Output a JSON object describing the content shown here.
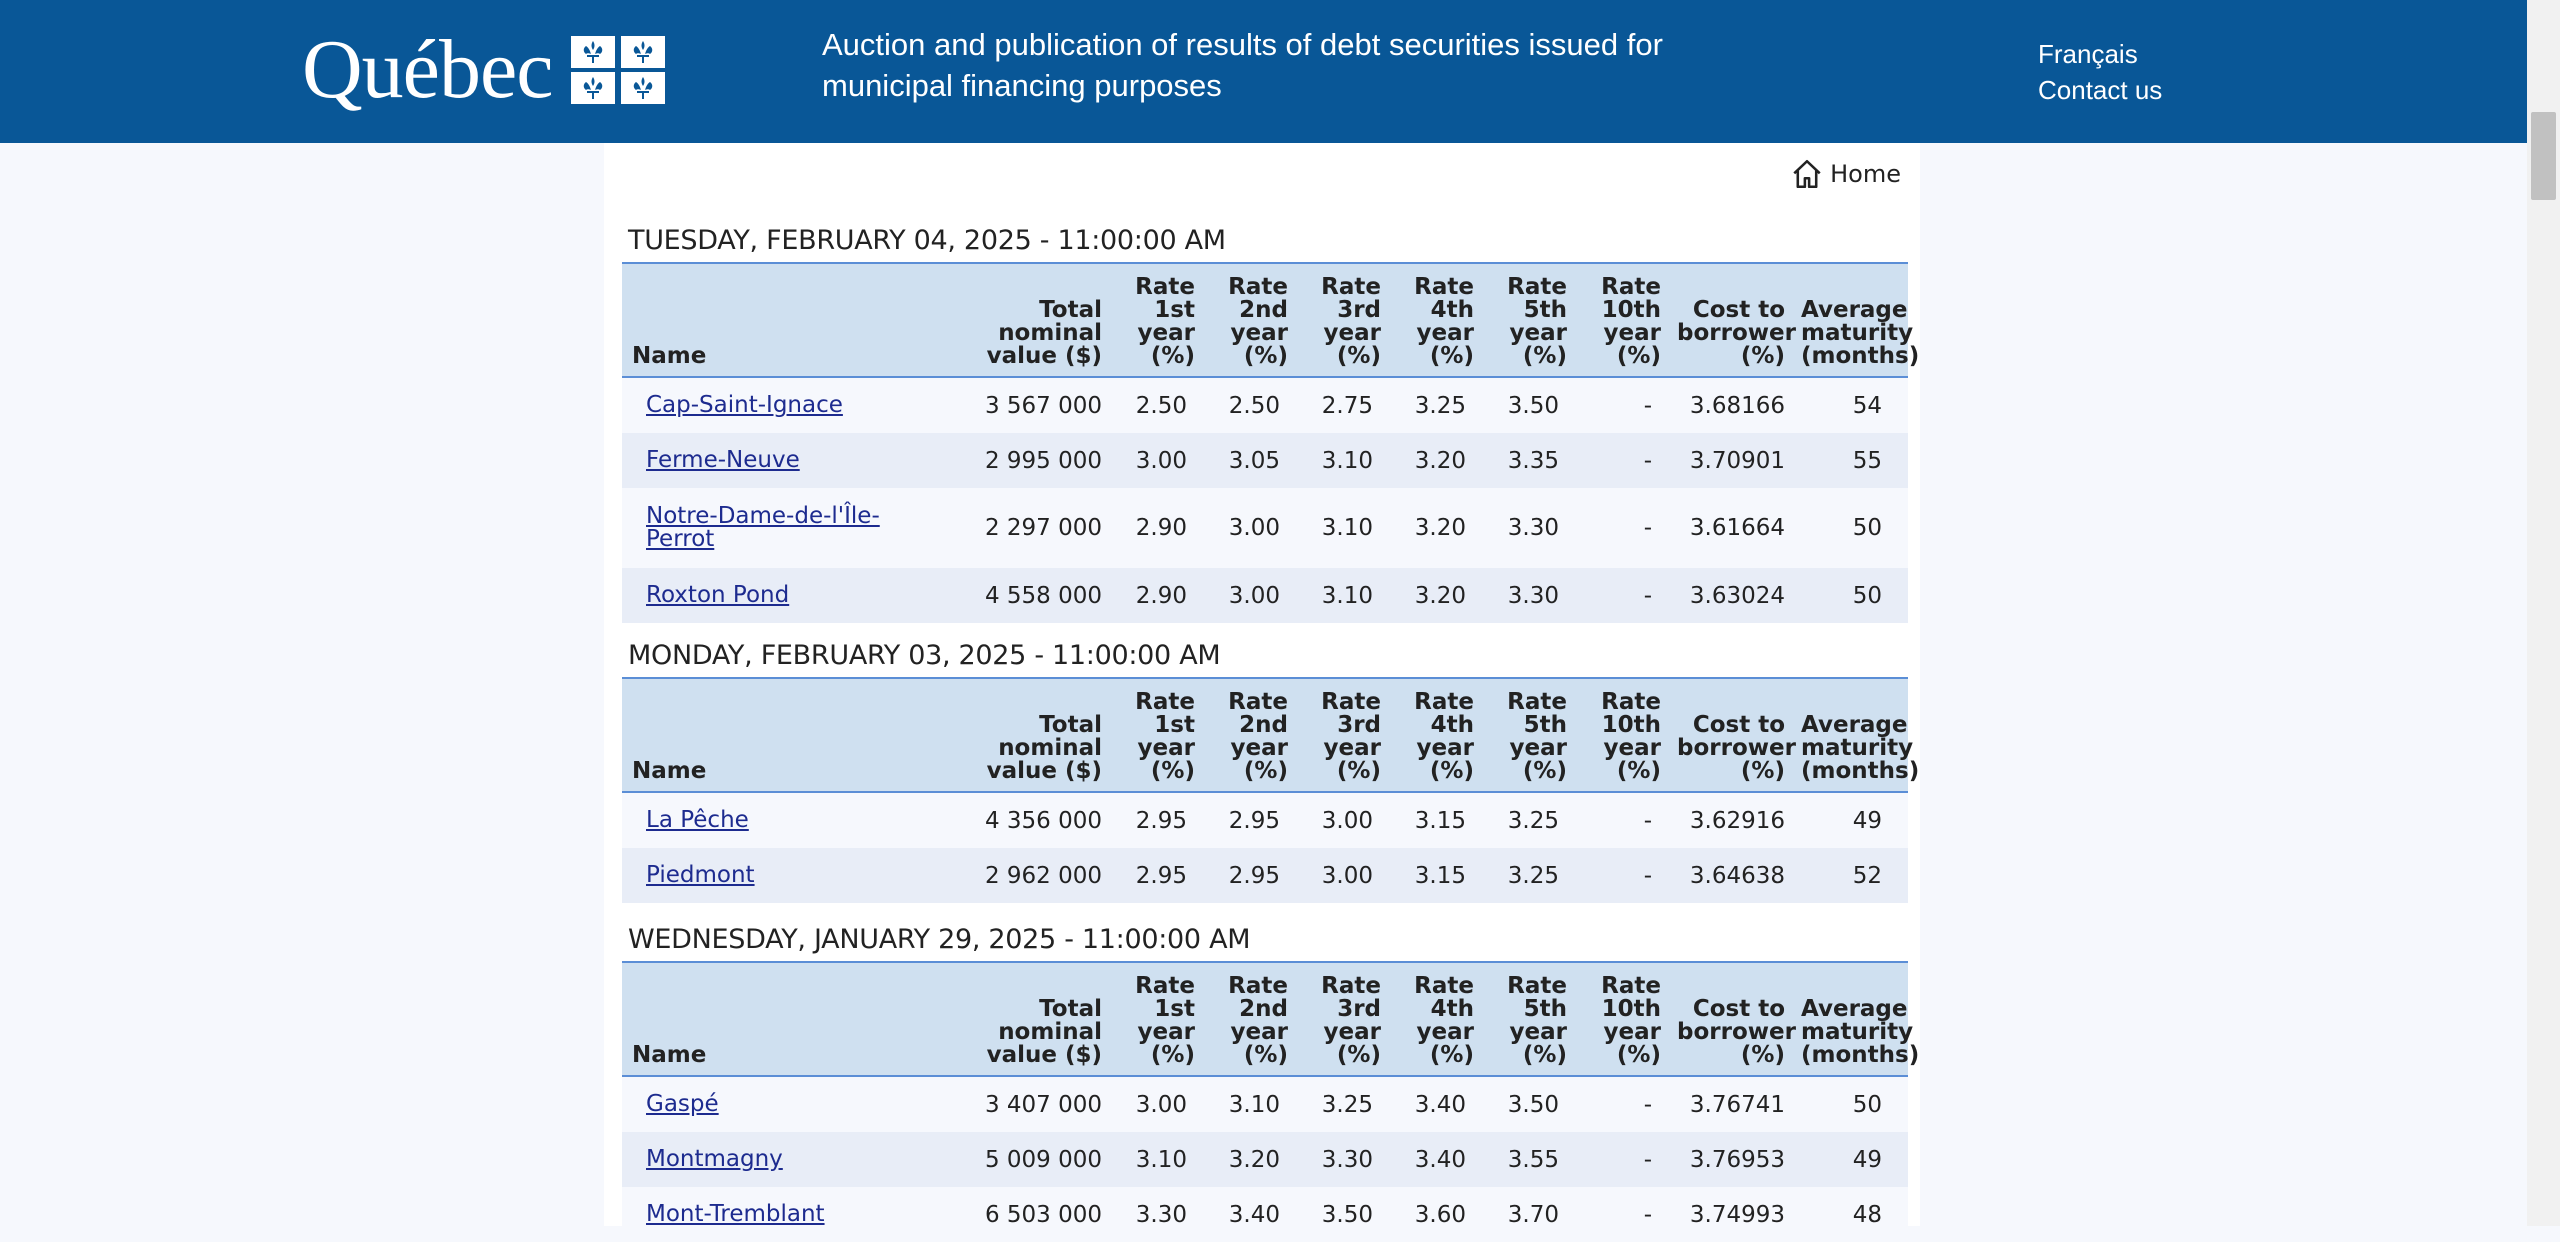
{
  "header": {
    "logo_text": "Québec",
    "title": "Auction and publication of results of debt securities issued for municipal financing purposes",
    "links": [
      "Français",
      "Contact us"
    ],
    "brand_color": "#095797"
  },
  "nav": {
    "home_label": "Home",
    "home_icon": "home-icon"
  },
  "columns": [
    "Name",
    "Total nominal value ($)",
    "Rate 1st year (%)",
    "Rate 2nd year (%)",
    "Rate 3rd year (%)",
    "Rate 4th year (%)",
    "Rate 5th year (%)",
    "Rate 10th year (%)",
    "Cost to borrower (%)",
    "Average maturity (months)"
  ],
  "auctions": [
    {
      "date": "TUESDAY, FEBRUARY 04, 2025 - 11:00:00 AM",
      "rows": [
        {
          "name": "Cap-Saint-Ignace",
          "total": "3 567 000",
          "r1": "2.50",
          "r2": "2.50",
          "r3": "2.75",
          "r4": "3.25",
          "r5": "3.50",
          "r10": "-",
          "cost": "3.68166",
          "maturity": "54"
        },
        {
          "name": "Ferme-Neuve",
          "total": "2 995 000",
          "r1": "3.00",
          "r2": "3.05",
          "r3": "3.10",
          "r4": "3.20",
          "r5": "3.35",
          "r10": "-",
          "cost": "3.70901",
          "maturity": "55"
        },
        {
          "name": "Notre-Dame-de-l'Île-Perrot",
          "total": "2 297 000",
          "r1": "2.90",
          "r2": "3.00",
          "r3": "3.10",
          "r4": "3.20",
          "r5": "3.30",
          "r10": "-",
          "cost": "3.61664",
          "maturity": "50"
        },
        {
          "name": "Roxton Pond",
          "total": "4 558 000",
          "r1": "2.90",
          "r2": "3.00",
          "r3": "3.10",
          "r4": "3.20",
          "r5": "3.30",
          "r10": "-",
          "cost": "3.63024",
          "maturity": "50"
        }
      ]
    },
    {
      "date": "MONDAY, FEBRUARY 03, 2025 - 11:00:00 AM",
      "rows": [
        {
          "name": "La Pêche",
          "total": "4 356 000",
          "r1": "2.95",
          "r2": "2.95",
          "r3": "3.00",
          "r4": "3.15",
          "r5": "3.25",
          "r10": "-",
          "cost": "3.62916",
          "maturity": "49"
        },
        {
          "name": "Piedmont",
          "total": "2 962 000",
          "r1": "2.95",
          "r2": "2.95",
          "r3": "3.00",
          "r4": "3.15",
          "r5": "3.25",
          "r10": "-",
          "cost": "3.64638",
          "maturity": "52"
        }
      ]
    },
    {
      "date": "WEDNESDAY, JANUARY 29, 2025 - 11:00:00 AM",
      "rows": [
        {
          "name": "Gaspé",
          "total": "3 407 000",
          "r1": "3.00",
          "r2": "3.10",
          "r3": "3.25",
          "r4": "3.40",
          "r5": "3.50",
          "r10": "-",
          "cost": "3.76741",
          "maturity": "50"
        },
        {
          "name": "Montmagny",
          "total": "5 009 000",
          "r1": "3.10",
          "r2": "3.20",
          "r3": "3.30",
          "r4": "3.40",
          "r5": "3.55",
          "r10": "-",
          "cost": "3.76953",
          "maturity": "49"
        },
        {
          "name": "Mont-Tremblant",
          "total": "6 503 000",
          "r1": "3.30",
          "r2": "3.40",
          "r3": "3.50",
          "r4": "3.60",
          "r5": "3.70",
          "r10": "-",
          "cost": "3.74993",
          "maturity": "48"
        }
      ]
    }
  ]
}
